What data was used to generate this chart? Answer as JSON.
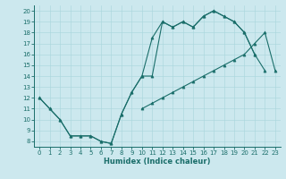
{
  "title": "",
  "xlabel": "Humidex (Indice chaleur)",
  "background_color": "#cce8ee",
  "line_color": "#1a6e6a",
  "xlim": [
    -0.5,
    23.5
  ],
  "ylim": [
    7.5,
    20.5
  ],
  "yticks": [
    8,
    9,
    10,
    11,
    12,
    13,
    14,
    15,
    16,
    17,
    18,
    19,
    20
  ],
  "xticks": [
    0,
    1,
    2,
    3,
    4,
    5,
    6,
    7,
    8,
    9,
    10,
    11,
    12,
    13,
    14,
    15,
    16,
    17,
    18,
    19,
    20,
    21,
    22,
    23
  ],
  "line1_x": [
    0,
    1,
    2,
    3,
    4,
    5,
    6,
    7,
    8,
    9,
    10,
    11,
    12,
    13,
    14,
    15,
    16,
    17,
    18,
    19,
    20,
    21,
    22,
    23
  ],
  "line1_y": [
    12,
    11,
    10,
    8.5,
    8.5,
    8.5,
    8,
    7.8,
    10.5,
    12.5,
    14.0,
    17.5,
    19.0,
    18.5,
    19.0,
    18.5,
    19.5,
    20.0,
    19.5,
    19.0,
    18.0,
    16.0,
    null,
    null
  ],
  "line2_x": [
    0,
    1,
    2,
    3,
    4,
    5,
    6,
    7,
    8,
    9,
    10,
    11,
    12,
    13,
    14,
    15,
    16,
    17,
    18,
    19,
    20,
    21,
    22,
    23
  ],
  "line2_y": [
    12,
    11,
    10,
    8.5,
    8.5,
    8.5,
    8,
    7.8,
    10.5,
    12.5,
    14.0,
    14.0,
    19.0,
    18.5,
    19.0,
    18.5,
    19.5,
    20.0,
    19.5,
    19.0,
    18.0,
    16.0,
    14.5,
    null
  ],
  "line3_x": [
    0,
    1,
    2,
    3,
    4,
    5,
    6,
    7,
    8,
    9,
    10,
    11,
    12,
    13,
    14,
    15,
    16,
    17,
    18,
    19,
    20,
    21,
    22,
    23
  ],
  "line3_y": [
    null,
    null,
    null,
    null,
    null,
    null,
    null,
    null,
    null,
    null,
    11.0,
    11.5,
    12.0,
    12.5,
    13.0,
    13.5,
    14.0,
    14.5,
    15.0,
    15.5,
    16.0,
    17.0,
    18.0,
    14.5
  ]
}
